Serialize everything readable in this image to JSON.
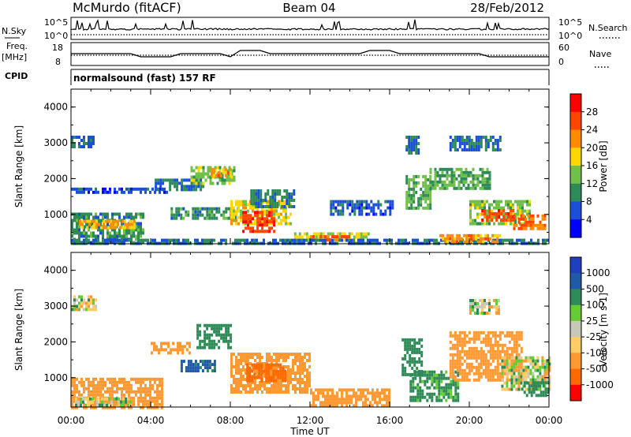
{
  "header": {
    "station": "McMurdo (fitACF)",
    "beam": "Beam 04",
    "date": "28/Feb/2012"
  },
  "sky_panel": {
    "left_label": "N.Sky",
    "right_label": "N.Search",
    "left_ticks": [
      "10^5",
      "10^0"
    ],
    "right_ticks": [
      "10^5",
      "10^0"
    ]
  },
  "freq_panel": {
    "left_label": "Freq.",
    "left_unit": "[MHz]",
    "right_label": "Nave",
    "left_ticks": [
      "18",
      "8"
    ],
    "right_ticks": [
      "60",
      "0"
    ]
  },
  "cpid": {
    "label": "CPID",
    "value": "normalsound (fast) 157 RF"
  },
  "chart_data": [
    {
      "type": "heatmap",
      "title": "",
      "xlabel": "Time UT",
      "ylabel": "Slant Range [km]",
      "xlim": [
        "00:00",
        "24:00"
      ],
      "ylim": [
        180,
        4500
      ],
      "x_ticks": [
        "00:00",
        "04:00",
        "08:00",
        "12:00",
        "16:00",
        "20:00",
        "00:00"
      ],
      "y_ticks": [
        "1000",
        "2000",
        "3000",
        "4000"
      ],
      "colorbar": {
        "label": "Power [dB]",
        "ticks": [
          "28",
          "24",
          "20",
          "16",
          "12",
          "8",
          "4"
        ],
        "colors": [
          "#0000ff",
          "#1b4fd8",
          "#2e8b57",
          "#6fbf4a",
          "#ffd700",
          "#ff8c00",
          "#ff4500",
          "#ff0000"
        ]
      },
      "regions": [
        {
          "t": [
            0.0,
            1.1
          ],
          "r": [
            2900,
            3200
          ],
          "v": 8
        },
        {
          "t": [
            0.0,
            3.6
          ],
          "r": [
            200,
            1050
          ],
          "v": 10
        },
        {
          "t": [
            0.4,
            3.2
          ],
          "r": [
            600,
            850
          ],
          "v": 20
        },
        {
          "t": [
            0.0,
            4.8
          ],
          "r": [
            1600,
            1750
          ],
          "v": 6
        },
        {
          "t": [
            4.2,
            6.6
          ],
          "r": [
            1700,
            2000
          ],
          "v": 8
        },
        {
          "t": [
            6.0,
            8.2
          ],
          "r": [
            1900,
            2350
          ],
          "v": 14
        },
        {
          "t": [
            7.0,
            8.0
          ],
          "r": [
            2050,
            2300
          ],
          "v": 22
        },
        {
          "t": [
            5.0,
            8.4
          ],
          "r": [
            900,
            1200
          ],
          "v": 10
        },
        {
          "t": [
            8.0,
            11.0
          ],
          "r": [
            700,
            1400
          ],
          "v": 18
        },
        {
          "t": [
            8.6,
            10.2
          ],
          "r": [
            500,
            1100
          ],
          "v": 27
        },
        {
          "t": [
            9.0,
            11.2
          ],
          "r": [
            1200,
            1700
          ],
          "v": 9
        },
        {
          "t": [
            11.2,
            15.0
          ],
          "r": [
            250,
            500
          ],
          "v": 16
        },
        {
          "t": [
            12.0,
            14.0
          ],
          "r": [
            300,
            420
          ],
          "v": 24
        },
        {
          "t": [
            13.0,
            16.2
          ],
          "r": [
            1000,
            1400
          ],
          "v": 6
        },
        {
          "t": [
            16.8,
            18.0
          ],
          "r": [
            1200,
            2100
          ],
          "v": 12
        },
        {
          "t": [
            16.8,
            17.4
          ],
          "r": [
            2700,
            3200
          ],
          "v": 8
        },
        {
          "t": [
            18.0,
            21.0
          ],
          "r": [
            1700,
            2300
          ],
          "v": 12
        },
        {
          "t": [
            20.0,
            23.0
          ],
          "r": [
            700,
            1400
          ],
          "v": 14
        },
        {
          "t": [
            20.6,
            22.2
          ],
          "r": [
            800,
            1150
          ],
          "v": 26
        },
        {
          "t": [
            22.2,
            23.8
          ],
          "r": [
            600,
            1000
          ],
          "v": 24
        },
        {
          "t": [
            19.0,
            21.5
          ],
          "r": [
            2800,
            3200
          ],
          "v": 8
        },
        {
          "t": [
            0.0,
            24.0
          ],
          "r": [
            180,
            320
          ],
          "v": 8
        },
        {
          "t": [
            18.5,
            21.5
          ],
          "r": [
            250,
            450
          ],
          "v": 22
        }
      ]
    },
    {
      "type": "heatmap",
      "title": "",
      "xlabel": "Time UT",
      "ylabel": "Slant Range [km]",
      "xlim": [
        "00:00",
        "24:00"
      ],
      "ylim": [
        180,
        4500
      ],
      "x_ticks": [
        "00:00",
        "04:00",
        "08:00",
        "12:00",
        "16:00",
        "20:00",
        "00:00"
      ],
      "y_ticks": [
        "1000",
        "2000",
        "3000",
        "4000"
      ],
      "colorbar": {
        "label": "Velocity [m s-1]",
        "ticks": [
          "1000",
          "500",
          "100",
          "25",
          "-25",
          "-100",
          "-500",
          "-1000"
        ],
        "colors": [
          "#ff0000",
          "#ff6a00",
          "#ff9933",
          "#ffcc66",
          "#c8c8b8",
          "#66cc33",
          "#2e8b57",
          "#1e5aa8",
          "#1f3fbf"
        ]
      },
      "regions": [
        {
          "t": [
            0.0,
            4.6
          ],
          "r": [
            200,
            1000
          ],
          "v": -300
        },
        {
          "t": [
            0.2,
            3.0
          ],
          "r": [
            250,
            450
          ],
          "v": 0
        },
        {
          "t": [
            0.0,
            1.2
          ],
          "r": [
            2900,
            3300
          ],
          "v": 0
        },
        {
          "t": [
            4.0,
            6.0
          ],
          "r": [
            1700,
            2000
          ],
          "v": -250
        },
        {
          "t": [
            6.3,
            8.0
          ],
          "r": [
            1800,
            2500
          ],
          "v": 250
        },
        {
          "t": [
            5.5,
            7.2
          ],
          "r": [
            1200,
            1500
          ],
          "v": 600
        },
        {
          "t": [
            8.0,
            12.0
          ],
          "r": [
            600,
            1700
          ],
          "v": -250
        },
        {
          "t": [
            8.8,
            10.8
          ],
          "r": [
            900,
            1400
          ],
          "v": -700
        },
        {
          "t": [
            12.0,
            16.0
          ],
          "r": [
            200,
            700
          ],
          "v": -300
        },
        {
          "t": [
            16.6,
            17.6
          ],
          "r": [
            1100,
            2100
          ],
          "v": 300
        },
        {
          "t": [
            17.0,
            19.4
          ],
          "r": [
            400,
            1200
          ],
          "v": 200
        },
        {
          "t": [
            19.0,
            22.6
          ],
          "r": [
            900,
            2300
          ],
          "v": -300
        },
        {
          "t": [
            21.6,
            24.0
          ],
          "r": [
            700,
            1600
          ],
          "v": 0
        },
        {
          "t": [
            22.6,
            24.0
          ],
          "r": [
            500,
            900
          ],
          "v": 250
        },
        {
          "t": [
            20.0,
            21.5
          ],
          "r": [
            2800,
            3200
          ],
          "v": 0
        }
      ]
    }
  ]
}
